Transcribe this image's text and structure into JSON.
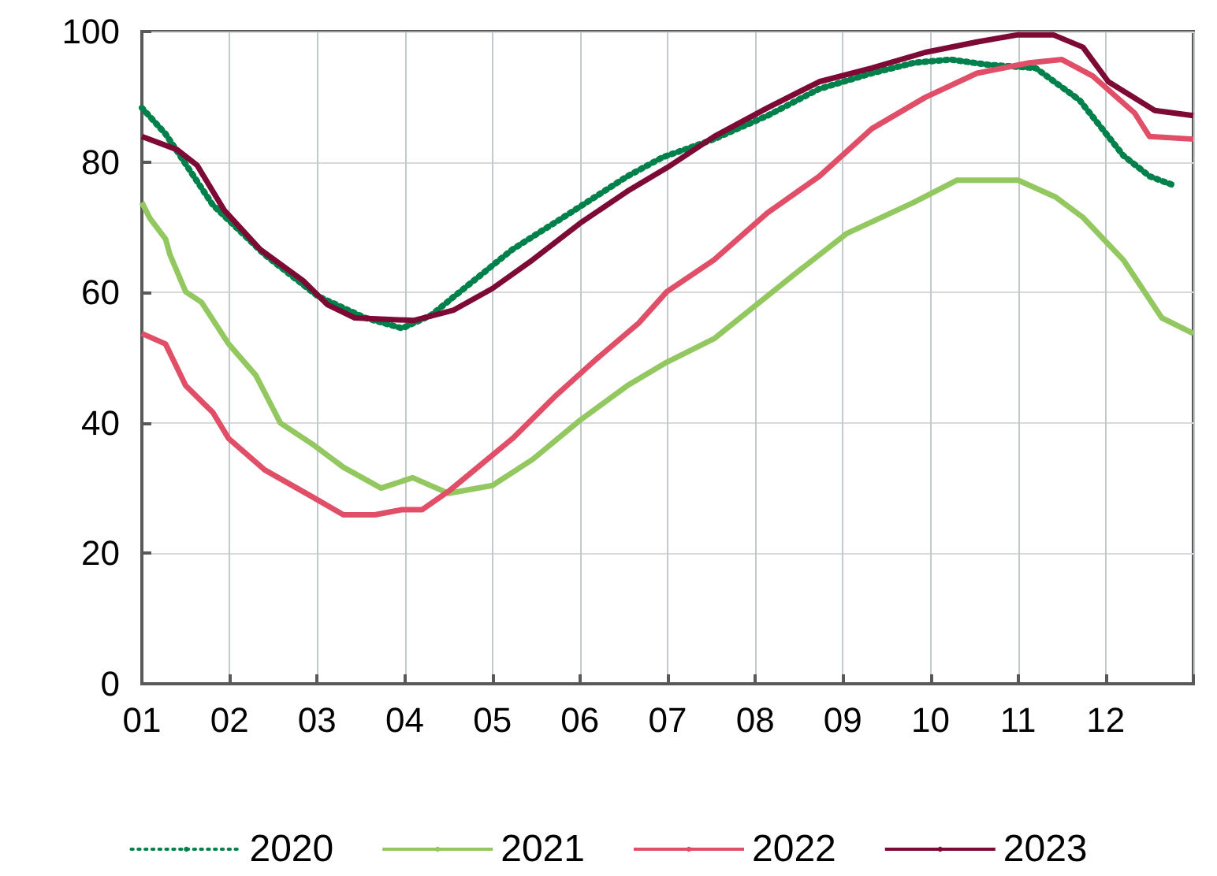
{
  "chart_data": {
    "type": "line",
    "xlim": [
      1,
      13
    ],
    "xticks": [
      {
        "value": 1,
        "label": "01"
      },
      {
        "value": 2,
        "label": "02"
      },
      {
        "value": 3,
        "label": "03"
      },
      {
        "value": 4,
        "label": "04"
      },
      {
        "value": 5,
        "label": "05"
      },
      {
        "value": 6,
        "label": "06"
      },
      {
        "value": 7,
        "label": "07"
      },
      {
        "value": 8,
        "label": "08"
      },
      {
        "value": 9,
        "label": "09"
      },
      {
        "value": 10,
        "label": "10"
      },
      {
        "value": 11,
        "label": "11"
      },
      {
        "value": 12,
        "label": "12"
      },
      {
        "value": 13,
        "label": null
      }
    ],
    "ylim": [
      0,
      100
    ],
    "yticks": [
      0,
      20,
      40,
      60,
      80,
      100
    ],
    "grid": true,
    "legend": "bottom",
    "marker": "none",
    "series": [
      {
        "name": "2020",
        "color": "#00804a",
        "line_style": "dotted",
        "x": [
          1,
          1.27,
          1.81,
          2.4,
          3.01,
          3.55,
          3.97,
          4.3,
          4.63,
          5.23,
          5.89,
          6.54,
          6.94,
          7.53,
          8.14,
          8.73,
          9.33,
          9.81,
          10.23,
          10.66,
          11.2,
          11.7,
          12.2,
          12.5,
          12.8
        ],
        "values": [
          88.3,
          84.3,
          73.4,
          65.8,
          59.4,
          56.1,
          54.5,
          56.5,
          60.1,
          66.6,
          72.2,
          77.8,
          80.7,
          83.5,
          87.1,
          91.2,
          93.6,
          95.2,
          95.7,
          94.9,
          94.4,
          89.5,
          81,
          77.8,
          76.3
        ]
      },
      {
        "name": "2021",
        "color": "#92c85f",
        "line_style": "solid",
        "x": [
          1,
          1.09,
          1.27,
          1.32,
          1.5,
          1.68,
          1.99,
          2.3,
          2.58,
          2.94,
          3.3,
          3.73,
          4.09,
          4.5,
          5.0,
          5.46,
          6.0,
          6.54,
          6.99,
          7.53,
          8.43,
          9.04,
          9.81,
          10.3,
          11.0,
          11.43,
          11.74,
          12.2,
          12.64,
          13
        ],
        "values": [
          73.8,
          71.4,
          68.2,
          65.8,
          60.1,
          58.5,
          52.1,
          47.3,
          40,
          36.8,
          33.2,
          30,
          31.6,
          29.2,
          30.4,
          34.4,
          40.4,
          45.7,
          49.3,
          52.9,
          62.6,
          69,
          73.8,
          77.2,
          77.2,
          74.6,
          71.5,
          65,
          56.1,
          53.7
        ]
      },
      {
        "name": "2022",
        "color": "#e04f67",
        "line_style": "solid",
        "x": [
          1,
          1.27,
          1.5,
          1.81,
          1.99,
          2.4,
          2.94,
          3.3,
          3.66,
          3.97,
          4.2,
          4.5,
          4.87,
          5.23,
          5.71,
          6.18,
          6.67,
          6.99,
          7.53,
          8.14,
          8.73,
          9.33,
          9.94,
          10.53,
          11.13,
          11.5,
          11.85,
          12.33,
          12.5,
          13
        ],
        "values": [
          53.7,
          52.1,
          45.7,
          41.6,
          37.6,
          32.8,
          28.7,
          25.9,
          25.9,
          26.7,
          26.7,
          29.5,
          33.6,
          37.6,
          44,
          49.7,
          55.3,
          60.1,
          65,
          72.2,
          77.8,
          85.1,
          89.9,
          93.6,
          95.2,
          95.7,
          93.2,
          87.5,
          83.9,
          83.5
        ]
      },
      {
        "name": "2023",
        "color": "#7d0a35",
        "line_style": "solid",
        "x": [
          1,
          1.4,
          1.63,
          1.94,
          2.35,
          2.84,
          3.12,
          3.43,
          4.1,
          4.56,
          5.0,
          5.46,
          6.0,
          6.54,
          6.99,
          7.53,
          8.14,
          8.73,
          9.33,
          9.94,
          10.53,
          11.0,
          11.4,
          11.74,
          12.03,
          12.56,
          13
        ],
        "values": [
          83.9,
          81.9,
          79.5,
          72.6,
          66.6,
          61.8,
          58.1,
          56.1,
          55.7,
          57.3,
          60.6,
          65,
          70.6,
          75.5,
          79.1,
          83.9,
          88.3,
          92.3,
          94.4,
          96.8,
          98.4,
          99.5,
          99.5,
          97.6,
          92.3,
          87.9,
          87.1
        ]
      }
    ]
  }
}
